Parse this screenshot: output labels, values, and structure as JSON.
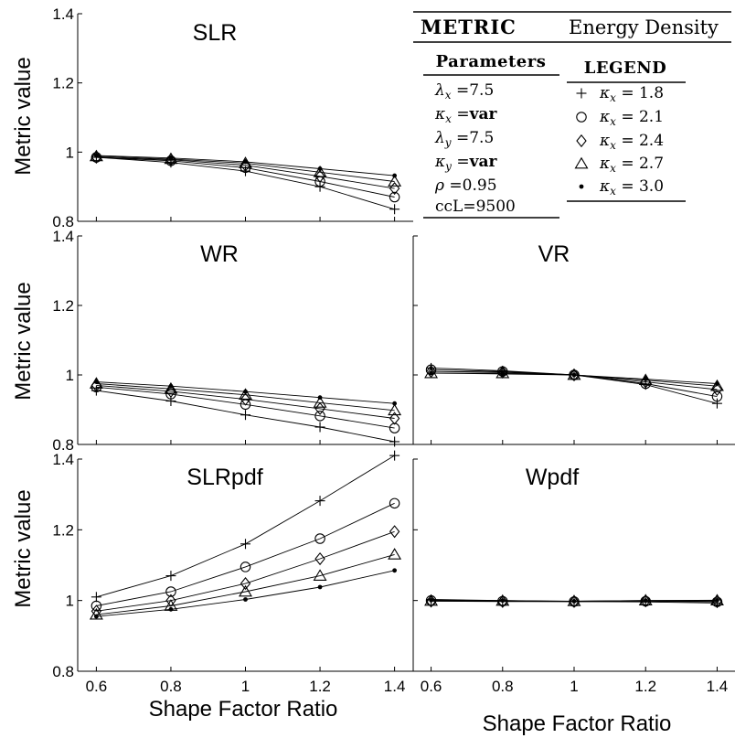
{
  "figure": {
    "ylabel": "Metric value",
    "xlabel": "Shape Factor Ratio",
    "xticks": [
      "0.6",
      "0.8",
      "1",
      "1.2",
      "1.4"
    ],
    "yticks": [
      "0.8",
      "1",
      "1.2",
      "1.4"
    ]
  },
  "metric_table": {
    "header_label": "METRIC",
    "header_value": "Energy Density"
  },
  "parameters": {
    "title": "Parameters",
    "rows": [
      {
        "name": "λ",
        "sub": "x",
        "op": "=",
        "value": "7.5",
        "bold": false
      },
      {
        "name": "κ",
        "sub": "x",
        "op": "=",
        "value": "var",
        "bold": true
      },
      {
        "name": "λ",
        "sub": "y",
        "op": "=",
        "value": "7.5",
        "bold": false
      },
      {
        "name": "κ",
        "sub": "y",
        "op": "=",
        "value": "var",
        "bold": true
      },
      {
        "name": "ρ",
        "sub": "",
        "op": " =",
        "value": "0.95",
        "bold": false
      },
      {
        "name": "ccL",
        "sub": "",
        "op": "=",
        "value": "9500",
        "bold": false
      }
    ]
  },
  "legend": {
    "title": "LEGEND",
    "entries": [
      {
        "marker": "plus",
        "name": "κ",
        "sub": "x",
        "value": "= 1.8"
      },
      {
        "marker": "circle",
        "name": "κ",
        "sub": "x",
        "value": "= 2.1"
      },
      {
        "marker": "diamond",
        "name": "κ",
        "sub": "x",
        "value": "= 2.4"
      },
      {
        "marker": "triangle",
        "name": "κ",
        "sub": "x",
        "value": "= 2.7"
      },
      {
        "marker": "dot",
        "name": "κ",
        "sub": "x",
        "value": "= 3.0"
      }
    ]
  },
  "chart_data": [
    {
      "type": "line",
      "title": "SLR",
      "x": [
        0.6,
        0.8,
        1.0,
        1.2,
        1.4
      ],
      "ylim": [
        0.8,
        1.4
      ],
      "series": [
        {
          "name": "κx = 1.8",
          "marker": "plus",
          "values": [
            0.985,
            0.97,
            0.945,
            0.9,
            0.835
          ]
        },
        {
          "name": "κx = 2.1",
          "marker": "circle",
          "values": [
            0.985,
            0.975,
            0.955,
            0.915,
            0.87
          ]
        },
        {
          "name": "κx = 2.4",
          "marker": "diamond",
          "values": [
            0.985,
            0.978,
            0.962,
            0.93,
            0.895
          ]
        },
        {
          "name": "κx = 2.7",
          "marker": "triangle",
          "values": [
            0.988,
            0.98,
            0.968,
            0.942,
            0.915
          ]
        },
        {
          "name": "κx = 3.0",
          "marker": "dot",
          "values": [
            0.99,
            0.983,
            0.972,
            0.952,
            0.932
          ]
        }
      ]
    },
    {
      "type": "line",
      "title": "WR",
      "x": [
        0.6,
        0.8,
        1.0,
        1.2,
        1.4
      ],
      "ylim": [
        0.8,
        1.4
      ],
      "series": [
        {
          "name": "κx = 1.8",
          "marker": "plus",
          "values": [
            0.955,
            0.925,
            0.885,
            0.85,
            0.808
          ]
        },
        {
          "name": "κx = 2.1",
          "marker": "circle",
          "values": [
            0.965,
            0.945,
            0.915,
            0.882,
            0.847
          ]
        },
        {
          "name": "κx = 2.4",
          "marker": "diamond",
          "values": [
            0.97,
            0.953,
            0.93,
            0.903,
            0.875
          ]
        },
        {
          "name": "κx = 2.7",
          "marker": "triangle",
          "values": [
            0.975,
            0.96,
            0.943,
            0.92,
            0.898
          ]
        },
        {
          "name": "κx = 3.0",
          "marker": "dot",
          "values": [
            0.98,
            0.968,
            0.952,
            0.935,
            0.918
          ]
        }
      ]
    },
    {
      "type": "line",
      "title": "VR",
      "x": [
        0.6,
        0.8,
        1.0,
        1.2,
        1.4
      ],
      "ylim": [
        0.8,
        1.4
      ],
      "series": [
        {
          "name": "κx = 1.8",
          "marker": "plus",
          "values": [
            1.02,
            1.012,
            1.0,
            0.972,
            0.918
          ]
        },
        {
          "name": "κx = 2.1",
          "marker": "circle",
          "values": [
            1.015,
            1.01,
            1.0,
            0.975,
            0.938
          ]
        },
        {
          "name": "κx = 2.4",
          "marker": "diamond",
          "values": [
            1.01,
            1.008,
            1.0,
            0.98,
            0.958
          ]
        },
        {
          "name": "κx = 2.7",
          "marker": "triangle",
          "values": [
            1.005,
            1.005,
            1.0,
            0.985,
            0.968
          ]
        },
        {
          "name": "κx = 3.0",
          "marker": "dot",
          "values": [
            1.005,
            1.003,
            1.0,
            0.988,
            0.975
          ]
        }
      ]
    },
    {
      "type": "line",
      "title": "SLRpdf",
      "x": [
        0.6,
        0.8,
        1.0,
        1.2,
        1.4
      ],
      "ylim": [
        0.8,
        1.4
      ],
      "series": [
        {
          "name": "κx = 1.8",
          "marker": "plus",
          "values": [
            1.01,
            1.07,
            1.16,
            1.282,
            1.41
          ]
        },
        {
          "name": "κx = 2.1",
          "marker": "circle",
          "values": [
            0.985,
            1.025,
            1.095,
            1.175,
            1.275
          ]
        },
        {
          "name": "κx = 2.4",
          "marker": "diamond",
          "values": [
            0.97,
            1.0,
            1.048,
            1.118,
            1.195
          ]
        },
        {
          "name": "κx = 2.7",
          "marker": "triangle",
          "values": [
            0.96,
            0.985,
            1.025,
            1.07,
            1.13
          ]
        },
        {
          "name": "κx = 3.0",
          "marker": "dot",
          "values": [
            0.955,
            0.975,
            1.003,
            1.038,
            1.085
          ]
        }
      ]
    },
    {
      "type": "line",
      "title": "Wpdf",
      "x": [
        0.6,
        0.8,
        1.0,
        1.2,
        1.4
      ],
      "ylim": [
        0.8,
        1.4
      ],
      "series": [
        {
          "name": "κx = 1.8",
          "marker": "plus",
          "values": [
            1.003,
            1.0,
            0.997,
            0.996,
            0.993
          ]
        },
        {
          "name": "κx = 2.1",
          "marker": "circle",
          "values": [
            1.0,
            0.998,
            0.997,
            0.998,
            0.996
          ]
        },
        {
          "name": "κx = 2.4",
          "marker": "diamond",
          "values": [
            0.998,
            0.997,
            0.997,
            0.999,
            0.998
          ]
        },
        {
          "name": "κx = 2.7",
          "marker": "triangle",
          "values": [
            0.999,
            0.999,
            0.998,
            1.0,
            1.0
          ]
        },
        {
          "name": "κx = 3.0",
          "marker": "dot",
          "values": [
            1.001,
            1.0,
            0.998,
            1.0,
            1.001
          ]
        }
      ]
    }
  ]
}
